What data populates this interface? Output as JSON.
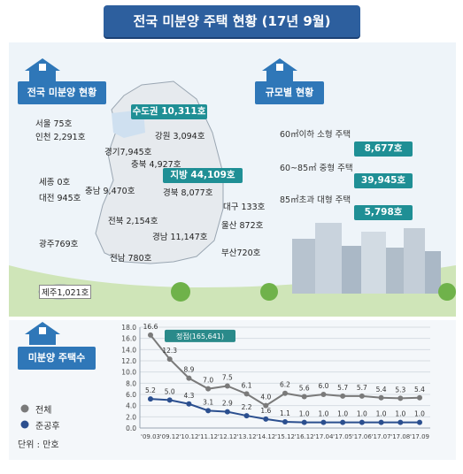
{
  "title": "전국 미분양 주택 현황 (17년 9월)",
  "map_section": {
    "label": "전국 미분양 현황",
    "capital_area": {
      "label": "수도권",
      "value": "10,311호"
    },
    "provinces": {
      "label": "지방",
      "value": "44,109호"
    },
    "regions": [
      {
        "id": "seoul",
        "text": "서울   75호"
      },
      {
        "id": "incheon",
        "text": "인천 2,291호"
      },
      {
        "id": "gyeonggi",
        "text": "경기7,945호"
      },
      {
        "id": "gangwon",
        "text": "강원 3,094호"
      },
      {
        "id": "chungbuk",
        "text": "충북 4,927호"
      },
      {
        "id": "sejong",
        "text": "세종 0호"
      },
      {
        "id": "chungnam",
        "text": "충남 9,470호"
      },
      {
        "id": "daejeon",
        "text": "대전 945호"
      },
      {
        "id": "gyeongbuk",
        "text": "경북 8,077호"
      },
      {
        "id": "daegu",
        "text": "대구 133호"
      },
      {
        "id": "jeonbuk",
        "text": "전북 2,154호"
      },
      {
        "id": "ulsan",
        "text": "울산 872호"
      },
      {
        "id": "gyeongnam",
        "text": "경남 11,147호"
      },
      {
        "id": "gwangju",
        "text": "광주769호"
      },
      {
        "id": "busan",
        "text": "부산720호"
      },
      {
        "id": "jeonnam",
        "text": "전남 780호"
      },
      {
        "id": "jeju",
        "text": "제주1,021호"
      }
    ]
  },
  "size_section": {
    "label": "규모별 현황",
    "items": [
      {
        "label": "60㎡이하 소형 주택",
        "value": "8,677호"
      },
      {
        "label": "60~85㎡ 중형 주택",
        "value": "39,945호"
      },
      {
        "label": "85㎡초과 대형 주택",
        "value": "5,798호"
      }
    ]
  },
  "trend_section": {
    "label": "미분양 주택수",
    "legend_total": "전체",
    "legend_completed": "준공후",
    "unit": "단위 : 만호",
    "peak_label": "정점(165,641)"
  },
  "colors": {
    "banner": "#2d5f9e",
    "house_label": "#2f77b8",
    "pill": "#1f8f95",
    "total_series": "#7a7a7a",
    "completed_series": "#2b4f8f",
    "peak_box": "#2a8a8a"
  },
  "chart_data": {
    "type": "line",
    "categories": [
      "'09.03",
      "'09.12",
      "'10.12",
      "'11.12",
      "'12.12",
      "'13.12",
      "'14.12",
      "'15.12",
      "'16.12",
      "'17.04",
      "'17.05",
      "'17.06",
      "'17.07",
      "'17.08",
      "'17.09"
    ],
    "series": [
      {
        "name": "전체",
        "values": [
          16.6,
          12.3,
          8.9,
          7.0,
          7.5,
          6.1,
          4.0,
          6.2,
          5.6,
          6.0,
          5.7,
          5.7,
          5.4,
          5.3,
          5.4
        ],
        "labels": [
          "16.6",
          "12.3",
          "8.9",
          "7.0",
          "7.5",
          "6.1",
          "4.0",
          "6.2",
          "5.6",
          "6.0",
          "5.7",
          "5.7",
          "5.4",
          "5.3",
          "5.4"
        ]
      },
      {
        "name": "준공후",
        "values": [
          5.2,
          5.0,
          4.3,
          3.1,
          2.9,
          2.2,
          1.6,
          1.1,
          1.0,
          1.0,
          1.0,
          1.0,
          1.0,
          1.0,
          1.0
        ],
        "labels": [
          "5.2",
          "5.0",
          "4.3",
          "3.1",
          "2.9",
          "2.2",
          "1.6",
          "1.1",
          "1.0",
          "1.0",
          "1.0",
          "1.0",
          "1.0",
          "1.0",
          "1.0"
        ]
      }
    ],
    "ylim": [
      0,
      18
    ],
    "yticks": [
      "18.0",
      "16.0",
      "14.0",
      "12.0",
      "10.0",
      "8.0",
      "6.0",
      "4.0",
      "2.0",
      "0.0"
    ],
    "ytick_values": [
      18,
      16,
      14,
      12,
      10,
      8,
      6,
      4,
      2,
      0
    ],
    "grid": true,
    "annotation": "정점(165,641)"
  }
}
